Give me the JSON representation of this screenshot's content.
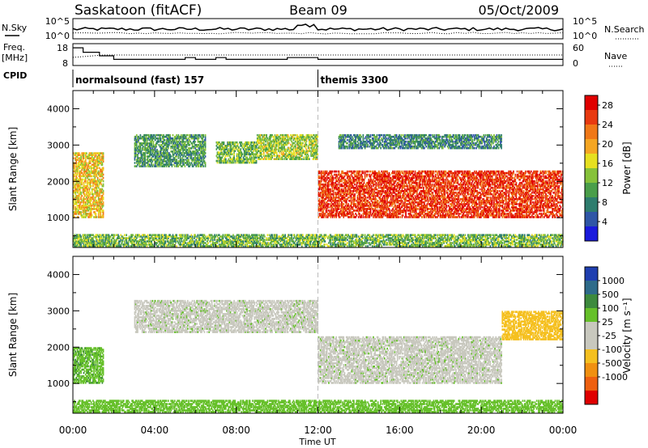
{
  "header": {
    "station": "Saskatoon (fitACF)",
    "beam": "Beam 09",
    "date": "05/Oct/2009"
  },
  "summary_panels": {
    "nsky_label": "N.Sky",
    "nsky_ticks": [
      "10^5",
      "10^0"
    ],
    "nsearch_label": "N.Search",
    "freq_label_1": "Freq.",
    "freq_label_2": "[MHz]",
    "freq_ticks": [
      "18",
      "8"
    ],
    "nave_label": "Nave",
    "nave_ticks": [
      "60",
      "0"
    ],
    "cpid_label": "CPID",
    "cpid_segments": [
      {
        "name": "normalsound (fast) 157",
        "start": 0,
        "end": 12
      },
      {
        "name": "themis 3300",
        "start": 12,
        "end": 24
      }
    ]
  },
  "colors": {
    "power_scale": [
      "#1a1adc",
      "#2f56a6",
      "#2e7d6e",
      "#4a9e4a",
      "#86c23a",
      "#e6e020",
      "#f5a623",
      "#f07818",
      "#e83a10",
      "#e00000"
    ],
    "velocity_scale": [
      "#1f3fb0",
      "#2e6b8a",
      "#3d8a3d",
      "#66c02a",
      "#c8c8be",
      "#c8c8be",
      "#f5c020",
      "#f09010",
      "#ee6010",
      "#e00000"
    ]
  },
  "chart_data": [
    {
      "type": "heatmap",
      "panel": "power",
      "xlabel": "Time UT",
      "ylabel": "Slant Range [km]",
      "x_range_hours": [
        0,
        24
      ],
      "x_ticks": [
        "00:00",
        "04:00",
        "08:00",
        "12:00",
        "16:00",
        "20:00",
        "00:00"
      ],
      "ylim": [
        180,
        4500
      ],
      "y_ticks": [
        1000,
        2000,
        3000,
        4000
      ],
      "colorbar_label": "Power [dB]",
      "colorbar_ticks": [
        4,
        8,
        12,
        16,
        20,
        24,
        28
      ],
      "colorbar_range": [
        0,
        30
      ],
      "regions": [
        {
          "t": [
            0,
            1.5
          ],
          "r": [
            1000,
            2800
          ],
          "value": 18
        },
        {
          "t": [
            0,
            24
          ],
          "r": [
            200,
            550
          ],
          "value": 12
        },
        {
          "t": [
            3,
            6.5
          ],
          "r": [
            2400,
            3300
          ],
          "value": 10
        },
        {
          "t": [
            7,
            9
          ],
          "r": [
            2500,
            3100
          ],
          "value": 12
        },
        {
          "t": [
            9,
            12
          ],
          "r": [
            2600,
            3300
          ],
          "value": 14
        },
        {
          "t": [
            12,
            24
          ],
          "r": [
            1000,
            2300
          ],
          "value": 26
        },
        {
          "t": [
            13,
            21
          ],
          "r": [
            2900,
            3300
          ],
          "value": 8
        }
      ]
    },
    {
      "type": "heatmap",
      "panel": "velocity",
      "xlabel": "Time UT",
      "ylabel": "Slant Range [km]",
      "x_range_hours": [
        0,
        24
      ],
      "x_ticks": [
        "00:00",
        "04:00",
        "08:00",
        "12:00",
        "16:00",
        "20:00",
        "00:00"
      ],
      "ylim": [
        180,
        4500
      ],
      "y_ticks": [
        1000,
        2000,
        3000,
        4000
      ],
      "colorbar_label": "Velocity [m s⁻¹]",
      "colorbar_ticks": [
        "1000",
        "500",
        "100",
        "25",
        "-25",
        "-100",
        "-500",
        "-1000"
      ],
      "colorbar_values": [
        1000,
        500,
        100,
        25,
        -25,
        -100,
        -500,
        -1000
      ],
      "regions": [
        {
          "t": [
            0,
            1.5
          ],
          "r": [
            1000,
            2000
          ],
          "value": 80
        },
        {
          "t": [
            0,
            24
          ],
          "r": [
            200,
            550
          ],
          "value": 60
        },
        {
          "t": [
            3,
            12
          ],
          "r": [
            2400,
            3300
          ],
          "value": 0
        },
        {
          "t": [
            12,
            21
          ],
          "r": [
            1000,
            2300
          ],
          "value": 0
        },
        {
          "t": [
            21,
            24
          ],
          "r": [
            2200,
            3000
          ],
          "value": -200
        }
      ]
    }
  ]
}
